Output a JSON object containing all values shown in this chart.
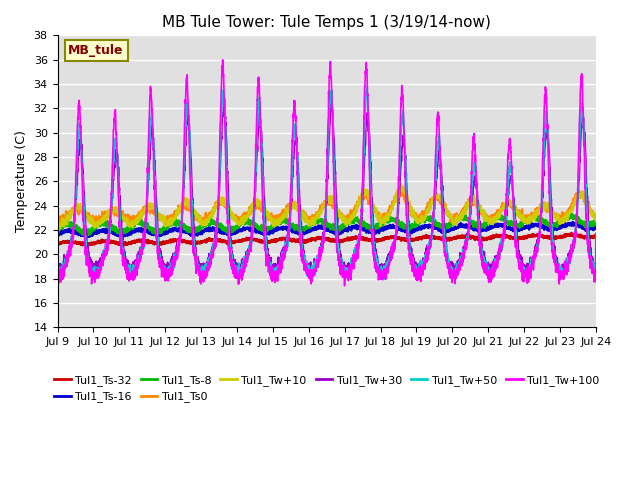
{
  "title": "MB Tule Tower: Tule Temps 1 (3/19/14-now)",
  "ylabel": "Temperature (C)",
  "ylim": [
    14,
    38
  ],
  "yticks": [
    14,
    16,
    18,
    20,
    22,
    24,
    26,
    28,
    30,
    32,
    34,
    36,
    38
  ],
  "x_start": 9,
  "x_end": 24,
  "xtick_labels": [
    "Jul 9",
    "Jul 10",
    "Jul 11",
    "Jul 12",
    "Jul 13",
    "Jul 14",
    "Jul 15",
    "Jul 16",
    "Jul 17",
    "Jul 18",
    "Jul 19",
    "Jul 20",
    "Jul 21",
    "Jul 22",
    "Jul 23",
    "Jul 24"
  ],
  "xtick_positions": [
    9,
    10,
    11,
    12,
    13,
    14,
    15,
    16,
    17,
    18,
    19,
    20,
    21,
    22,
    23,
    24
  ],
  "bg_color": "#e0e0e0",
  "fig_bg": "#ffffff",
  "grid_color": "#ffffff",
  "series_order": [
    "Tul1_Ts-32",
    "Tul1_Ts-16",
    "Tul1_Ts-8",
    "Tul1_Ts0",
    "Tul1_Tw+10",
    "Tul1_Tw+30",
    "Tul1_Tw+50",
    "Tul1_Tw+100"
  ],
  "series": {
    "Tul1_Ts-32": {
      "color": "#cc0000",
      "lw": 1.8
    },
    "Tul1_Ts-16": {
      "color": "#0000cc",
      "lw": 1.8
    },
    "Tul1_Ts-8": {
      "color": "#00bb00",
      "lw": 1.8
    },
    "Tul1_Ts0": {
      "color": "#ff8800",
      "lw": 1.5
    },
    "Tul1_Tw+10": {
      "color": "#cccc00",
      "lw": 1.5
    },
    "Tul1_Tw+30": {
      "color": "#9900cc",
      "lw": 1.2
    },
    "Tul1_Tw+50": {
      "color": "#00cccc",
      "lw": 1.2
    },
    "Tul1_Tw+100": {
      "color": "#ff00ff",
      "lw": 1.2
    }
  },
  "annotation_box": {
    "text": "MB_tule",
    "facecolor": "#ffffcc",
    "edgecolor": "#888800",
    "textcolor": "#880000",
    "fontsize": 9,
    "fontweight": "bold"
  },
  "legend_ncol": 6,
  "legend_fontsize": 8
}
